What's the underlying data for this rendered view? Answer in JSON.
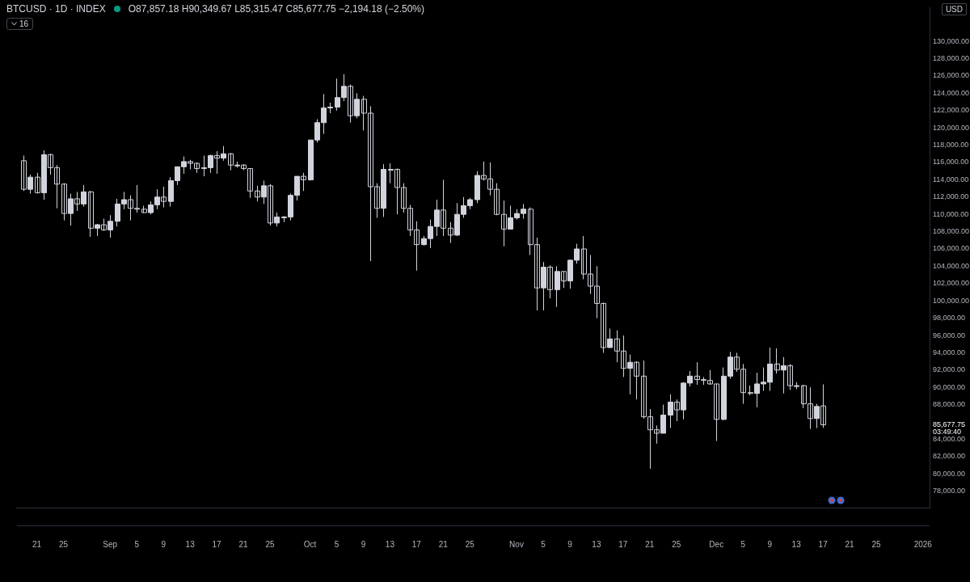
{
  "chart_data": {
    "type": "candlestick",
    "title": "BTCUSD · 1D · INDEX",
    "subtitle": "O87,857.18 H90,349.67 L85,315.47 C85,677.75 −2,194.18 (−2.50%)",
    "ylabel": "USD",
    "x": [
      "2025-08-19",
      "2025-08-20",
      "2025-08-21",
      "2025-08-22",
      "2025-08-23",
      "2025-08-24",
      "2025-08-25",
      "2025-08-26",
      "2025-08-27",
      "2025-08-28",
      "2025-08-29",
      "2025-08-30",
      "2025-08-31",
      "2025-09-01",
      "2025-09-02",
      "2025-09-03",
      "2025-09-04",
      "2025-09-05",
      "2025-09-06",
      "2025-09-07",
      "2025-09-08",
      "2025-09-09",
      "2025-09-10",
      "2025-09-11",
      "2025-09-12",
      "2025-09-13",
      "2025-09-14",
      "2025-09-15",
      "2025-09-16",
      "2025-09-17",
      "2025-09-18",
      "2025-09-19",
      "2025-09-20",
      "2025-09-21",
      "2025-09-22",
      "2025-09-23",
      "2025-09-24",
      "2025-09-25",
      "2025-09-26",
      "2025-09-27",
      "2025-09-28",
      "2025-09-29",
      "2025-09-30",
      "2025-10-01",
      "2025-10-02",
      "2025-10-03",
      "2025-10-04",
      "2025-10-05",
      "2025-10-06",
      "2025-10-07",
      "2025-10-08",
      "2025-10-09",
      "2025-10-10",
      "2025-10-11",
      "2025-10-12",
      "2025-10-13",
      "2025-10-14",
      "2025-10-15",
      "2025-10-16",
      "2025-10-17",
      "2025-10-18",
      "2025-10-19",
      "2025-10-20",
      "2025-10-21",
      "2025-10-22",
      "2025-10-23",
      "2025-10-24",
      "2025-10-25",
      "2025-10-26",
      "2025-10-27",
      "2025-10-28",
      "2025-10-29",
      "2025-10-30",
      "2025-10-31",
      "2025-11-01",
      "2025-11-02",
      "2025-11-03",
      "2025-11-04",
      "2025-11-05",
      "2025-11-06",
      "2025-11-07",
      "2025-11-08",
      "2025-11-09",
      "2025-11-10",
      "2025-11-11",
      "2025-11-12",
      "2025-11-13",
      "2025-11-14",
      "2025-11-15",
      "2025-11-16",
      "2025-11-17",
      "2025-11-18",
      "2025-11-19",
      "2025-11-20",
      "2025-11-21",
      "2025-11-22",
      "2025-11-23",
      "2025-11-24",
      "2025-11-25",
      "2025-11-26",
      "2025-11-27",
      "2025-11-28",
      "2025-11-29",
      "2025-11-30",
      "2025-12-01",
      "2025-12-02",
      "2025-12-03",
      "2025-12-04",
      "2025-12-05",
      "2025-12-06",
      "2025-12-07",
      "2025-12-08",
      "2025-12-09",
      "2025-12-10",
      "2025-12-11",
      "2025-12-12",
      "2025-12-13",
      "2025-12-14",
      "2025-12-15",
      "2025-12-16",
      "2025-12-17"
    ],
    "ohlc": [
      [
        116200,
        116800,
        112700,
        112900
      ],
      [
        112900,
        114600,
        112400,
        114300
      ],
      [
        114300,
        114800,
        112400,
        112500
      ],
      [
        112500,
        117400,
        111700,
        116900
      ],
      [
        116900,
        117000,
        114600,
        115400
      ],
      [
        115400,
        115700,
        110700,
        113500
      ],
      [
        113500,
        113600,
        109300,
        110100
      ],
      [
        110100,
        112400,
        108700,
        111800
      ],
      [
        111800,
        112600,
        110400,
        111200
      ],
      [
        111200,
        113400,
        110900,
        112600
      ],
      [
        112600,
        112700,
        107400,
        108400
      ],
      [
        108400,
        108900,
        107500,
        108800
      ],
      [
        108800,
        109500,
        108100,
        108200
      ],
      [
        108200,
        109900,
        107300,
        109200
      ],
      [
        109200,
        111800,
        108600,
        111200
      ],
      [
        111200,
        112600,
        110600,
        111700
      ],
      [
        111700,
        112200,
        109300,
        110700
      ],
      [
        110700,
        113400,
        110200,
        110600
      ],
      [
        110600,
        111000,
        110200,
        110200
      ],
      [
        110200,
        111500,
        110000,
        111100
      ],
      [
        111100,
        112900,
        110600,
        112000
      ],
      [
        112000,
        113200,
        110800,
        111500
      ],
      [
        111500,
        114300,
        110900,
        113900
      ],
      [
        113900,
        115500,
        113400,
        115500
      ],
      [
        115500,
        116700,
        114700,
        116100
      ],
      [
        116100,
        116300,
        115200,
        115900
      ],
      [
        115900,
        116000,
        114800,
        115300
      ],
      [
        115300,
        116800,
        114400,
        115400
      ],
      [
        115400,
        116900,
        114800,
        116800
      ],
      [
        116800,
        117300,
        114700,
        116500
      ],
      [
        116500,
        117900,
        116200,
        117000
      ],
      [
        117000,
        117100,
        115100,
        115700
      ],
      [
        115700,
        116100,
        115400,
        115700
      ],
      [
        115700,
        115800,
        115100,
        115300
      ],
      [
        115300,
        115300,
        111900,
        112700
      ],
      [
        112700,
        113300,
        111500,
        112000
      ],
      [
        112000,
        113900,
        111200,
        113300
      ],
      [
        113300,
        113500,
        108700,
        109000
      ],
      [
        109000,
        110200,
        108600,
        109700
      ],
      [
        109700,
        109800,
        109100,
        109700
      ],
      [
        109700,
        112400,
        109300,
        112200
      ],
      [
        112200,
        114400,
        111600,
        114400
      ],
      [
        114400,
        114800,
        112700,
        114000
      ],
      [
        114000,
        118600,
        113900,
        118600
      ],
      [
        118600,
        121000,
        118300,
        120600
      ],
      [
        120600,
        123900,
        119300,
        122300
      ],
      [
        122300,
        122900,
        121700,
        122400
      ],
      [
        122400,
        125700,
        122000,
        123500
      ],
      [
        123500,
        126200,
        123100,
        124800
      ],
      [
        124800,
        125000,
        120600,
        121400
      ],
      [
        121400,
        124000,
        121100,
        123300
      ],
      [
        123300,
        123700,
        119700,
        121700
      ],
      [
        121700,
        122500,
        104600,
        113200
      ],
      [
        113200,
        113600,
        109600,
        110700
      ],
      [
        110700,
        115800,
        109700,
        115200
      ],
      [
        115200,
        115900,
        113600,
        115200
      ],
      [
        115200,
        115300,
        110000,
        113100
      ],
      [
        113100,
        113600,
        110200,
        110700
      ],
      [
        110700,
        111100,
        107500,
        108200
      ],
      [
        108200,
        109200,
        103500,
        106500
      ],
      [
        106500,
        107500,
        106400,
        107200
      ],
      [
        107200,
        109400,
        106100,
        108600
      ],
      [
        108600,
        111700,
        107500,
        110500
      ],
      [
        110500,
        114000,
        107500,
        108400
      ],
      [
        108400,
        109100,
        106700,
        107600
      ],
      [
        107600,
        111300,
        107500,
        110000
      ],
      [
        110000,
        112000,
        109600,
        111000
      ],
      [
        111000,
        111900,
        110600,
        111700
      ],
      [
        111700,
        115000,
        111300,
        114500
      ],
      [
        114500,
        116100,
        113900,
        114100
      ],
      [
        114100,
        116000,
        112200,
        112900
      ],
      [
        112900,
        113600,
        109900,
        110000
      ],
      [
        110000,
        111600,
        106300,
        108300
      ],
      [
        108300,
        111000,
        108300,
        109600
      ],
      [
        109600,
        110600,
        109400,
        110100
      ],
      [
        110100,
        111200,
        109500,
        110600
      ],
      [
        110600,
        110800,
        105300,
        106500
      ],
      [
        106500,
        107300,
        98900,
        101500
      ],
      [
        101500,
        104500,
        98900,
        103900
      ],
      [
        103900,
        104100,
        100300,
        101300
      ],
      [
        101300,
        104000,
        99300,
        103400
      ],
      [
        103400,
        103400,
        101500,
        102300
      ],
      [
        102300,
        104800,
        101400,
        104700
      ],
      [
        104700,
        106600,
        104300,
        106000
      ],
      [
        106000,
        107500,
        102500,
        103100
      ],
      [
        103100,
        105300,
        100800,
        101700
      ],
      [
        101700,
        104000,
        98000,
        99700
      ],
      [
        99700,
        99800,
        94000,
        94600
      ],
      [
        94600,
        96800,
        94600,
        95600
      ],
      [
        95600,
        96600,
        92900,
        94200
      ],
      [
        94200,
        96000,
        91200,
        92200
      ],
      [
        92200,
        93800,
        89200,
        92900
      ],
      [
        92900,
        93000,
        88600,
        91300
      ],
      [
        91300,
        93100,
        86400,
        86600
      ],
      [
        86600,
        87500,
        80600,
        85100
      ],
      [
        85100,
        85600,
        83500,
        84700
      ],
      [
        84700,
        88000,
        84700,
        86800
      ],
      [
        86800,
        89200,
        85300,
        88300
      ],
      [
        88300,
        88600,
        86100,
        87400
      ],
      [
        87400,
        90600,
        86300,
        90500
      ],
      [
        90500,
        91900,
        90100,
        91300
      ],
      [
        91300,
        92900,
        90300,
        90900
      ],
      [
        90900,
        91200,
        90300,
        90800
      ],
      [
        90800,
        92000,
        90300,
        90400
      ],
      [
        90400,
        90400,
        83800,
        86300
      ],
      [
        86300,
        92300,
        86200,
        91300
      ],
      [
        91300,
        94100,
        91000,
        93500
      ],
      [
        93500,
        94000,
        91800,
        92100
      ],
      [
        92100,
        92700,
        88100,
        89400
      ],
      [
        89400,
        90200,
        89100,
        89300
      ],
      [
        89300,
        91700,
        87700,
        90400
      ],
      [
        90400,
        92300,
        89600,
        90600
      ],
      [
        90600,
        94600,
        89600,
        92700
      ],
      [
        92700,
        94500,
        91600,
        92000
      ],
      [
        92000,
        93500,
        89300,
        92500
      ],
      [
        92500,
        92700,
        89700,
        90200
      ],
      [
        90200,
        90600,
        89800,
        90200
      ],
      [
        90200,
        90300,
        87600,
        88100
      ],
      [
        88100,
        90000,
        85200,
        86400
      ],
      [
        86400,
        88100,
        85300,
        87800
      ],
      [
        87857.18,
        90349.67,
        85315.47,
        85677.75
      ]
    ],
    "color": "#d1d4dc",
    "xlim": [
      "2025-08-18",
      "2026-01-02"
    ],
    "xticks": [
      {
        "value": "2025-08-21",
        "label": "21"
      },
      {
        "value": "2025-08-25",
        "label": "25"
      },
      {
        "value": "2025-09-01",
        "label": "Sep"
      },
      {
        "value": "2025-09-05",
        "label": "5"
      },
      {
        "value": "2025-09-09",
        "label": "9"
      },
      {
        "value": "2025-09-13",
        "label": "13"
      },
      {
        "value": "2025-09-17",
        "label": "17"
      },
      {
        "value": "2025-09-21",
        "label": "21"
      },
      {
        "value": "2025-09-25",
        "label": "25"
      },
      {
        "value": "2025-10-01",
        "label": "Oct"
      },
      {
        "value": "2025-10-05",
        "label": "5"
      },
      {
        "value": "2025-10-09",
        "label": "9"
      },
      {
        "value": "2025-10-13",
        "label": "13"
      },
      {
        "value": "2025-10-17",
        "label": "17"
      },
      {
        "value": "2025-10-21",
        "label": "21"
      },
      {
        "value": "2025-10-25",
        "label": "25"
      },
      {
        "value": "2025-11-01",
        "label": "Nov"
      },
      {
        "value": "2025-11-05",
        "label": "5"
      },
      {
        "value": "2025-11-09",
        "label": "9"
      },
      {
        "value": "2025-11-13",
        "label": "13"
      },
      {
        "value": "2025-11-17",
        "label": "17"
      },
      {
        "value": "2025-11-21",
        "label": "21"
      },
      {
        "value": "2025-11-25",
        "label": "25"
      },
      {
        "value": "2025-12-01",
        "label": "Dec"
      },
      {
        "value": "2025-12-05",
        "label": "5"
      },
      {
        "value": "2025-12-09",
        "label": "9"
      },
      {
        "value": "2025-12-13",
        "label": "13"
      },
      {
        "value": "2025-12-17",
        "label": "17"
      },
      {
        "value": "2025-12-21",
        "label": "21"
      },
      {
        "value": "2025-12-25",
        "label": "25"
      },
      {
        "value": "2026-01-01",
        "label": "2026"
      }
    ],
    "ylim": [
      76100,
      133900
    ],
    "yticks": [
      {
        "value": 78000,
        "label": "78,000.00"
      },
      {
        "value": 80000,
        "label": "80,000.00"
      },
      {
        "value": 82000,
        "label": "82,000.00"
      },
      {
        "value": 84000,
        "label": "84,000.00"
      },
      {
        "value": 88000,
        "label": "88,000.00"
      },
      {
        "value": 90000,
        "label": "90,000.00"
      },
      {
        "value": 92000,
        "label": "92,000.00"
      },
      {
        "value": 94000,
        "label": "94,000.00"
      },
      {
        "value": 96000,
        "label": "96,000.00"
      },
      {
        "value": 98000,
        "label": "98,000.00"
      },
      {
        "value": 100000,
        "label": "100,000.00"
      },
      {
        "value": 102000,
        "label": "102,000.00"
      },
      {
        "value": 104000,
        "label": "104,000.00"
      },
      {
        "value": 106000,
        "label": "106,000.00"
      },
      {
        "value": 108000,
        "label": "108,000.00"
      },
      {
        "value": 110000,
        "label": "110,000.00"
      },
      {
        "value": 112000,
        "label": "112,000.00"
      },
      {
        "value": 114000,
        "label": "114,000.00"
      },
      {
        "value": 116000,
        "label": "116,000.00"
      },
      {
        "value": 118000,
        "label": "118,000.00"
      },
      {
        "value": 120000,
        "label": "120,000.00"
      },
      {
        "value": 122000,
        "label": "122,000.00"
      },
      {
        "value": 124000,
        "label": "124,000.00"
      },
      {
        "value": 126000,
        "label": "126,000.00"
      },
      {
        "value": 128000,
        "label": "128,000.00"
      },
      {
        "value": 130000,
        "label": "130,000.00"
      }
    ],
    "annotations": [
      "85,677.75",
      "03:49:40",
      "16"
    ]
  }
}
